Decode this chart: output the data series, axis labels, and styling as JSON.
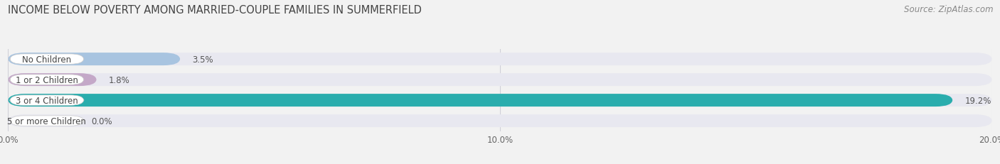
{
  "title": "INCOME BELOW POVERTY AMONG MARRIED-COUPLE FAMILIES IN SUMMERFIELD",
  "source": "Source: ZipAtlas.com",
  "categories": [
    "No Children",
    "1 or 2 Children",
    "3 or 4 Children",
    "5 or more Children"
  ],
  "values": [
    3.5,
    1.8,
    19.2,
    0.0
  ],
  "bar_colors": [
    "#a8c4e0",
    "#c4a8c8",
    "#2aadad",
    "#b0b4e0"
  ],
  "bar_bg_color": "#e8e8f0",
  "xlim": [
    0,
    20.0
  ],
  "xticks": [
    0.0,
    10.0,
    20.0
  ],
  "xtick_labels": [
    "0.0%",
    "10.0%",
    "20.0%"
  ],
  "title_fontsize": 10.5,
  "source_fontsize": 8.5,
  "label_fontsize": 8.5,
  "value_fontsize": 8.5,
  "bar_height": 0.62,
  "bar_gap": 1.0,
  "background_color": "#f2f2f2",
  "label_box_color": "#ffffff",
  "grid_color": "#d0d0d8",
  "value_color": "#555555",
  "title_color": "#444444",
  "label_text_color": "#444444"
}
